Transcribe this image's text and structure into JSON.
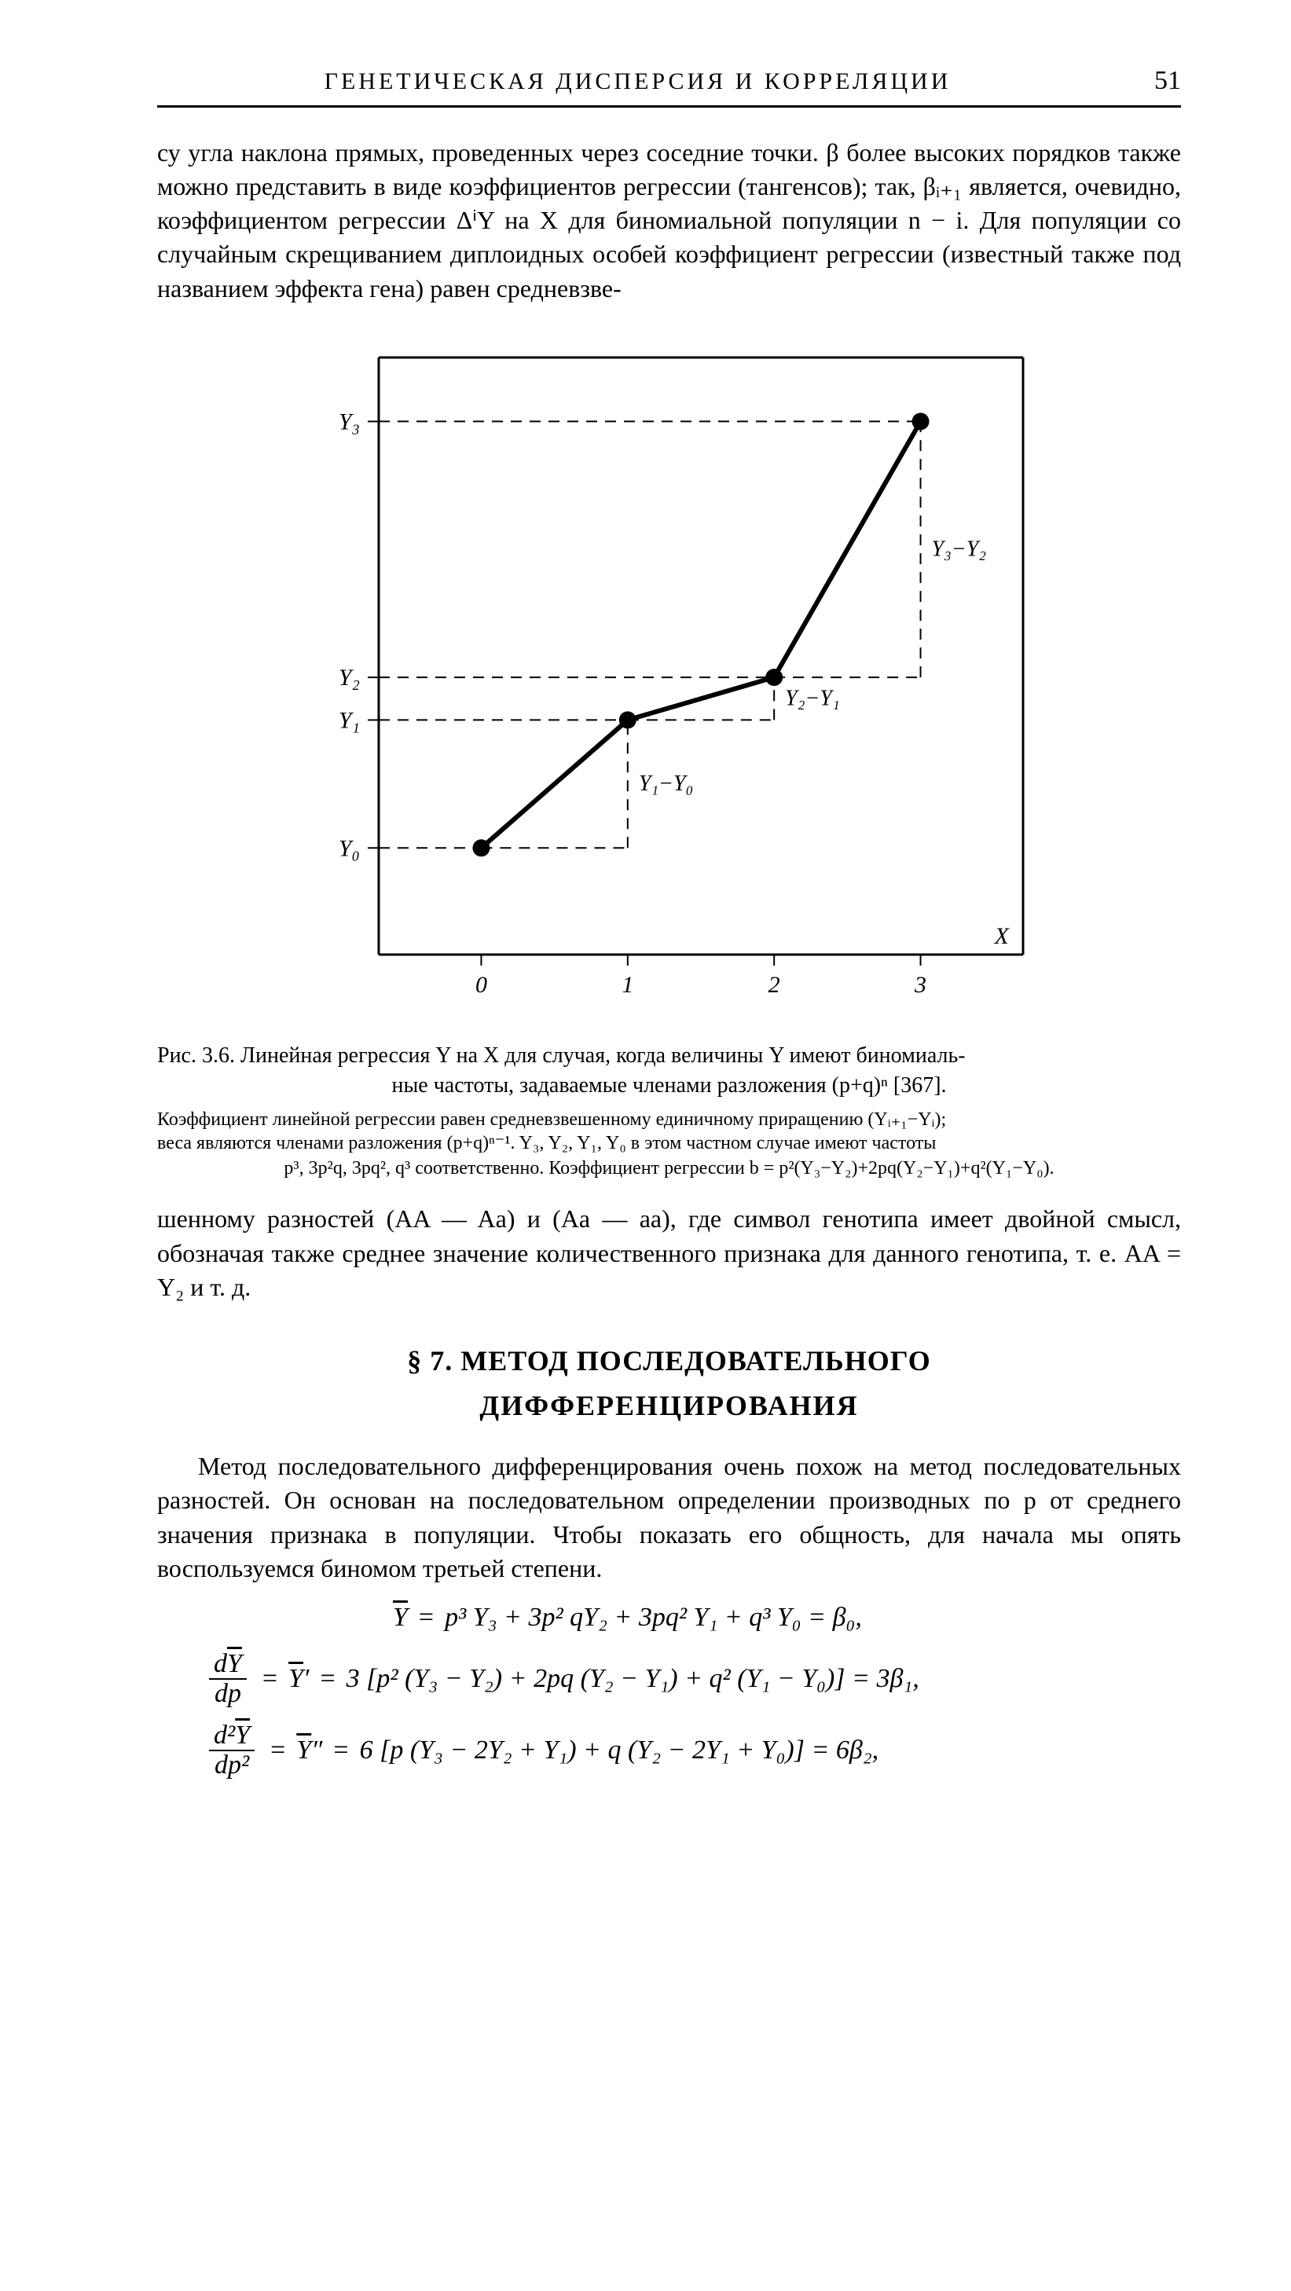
{
  "page": {
    "running_title": "ГЕНЕТИЧЕСКАЯ ДИСПЕРСИЯ И КОРРЕЛЯЦИИ",
    "number": "51"
  },
  "para1": "су угла наклона прямых, проведенных через соседние точки. β более высоких порядков также можно представить в виде коэффициентов регрессии (тангенсов); так, βᵢ₊₁ является, очевидно, коэффициентом регрессии ΔⁱY на X для биномиальной популяции n − i. Для популяции со случайным скрещиванием диплоидных особей коэффициент регрессии (известный также под названием эффекта гена) равен средневзве-",
  "chart": {
    "type": "line",
    "x_values": [
      -0.5,
      0,
      1,
      2,
      3,
      3.6
    ],
    "y_ticks": [
      {
        "value": 1.0,
        "label": "Y₀"
      },
      {
        "value": 2.2,
        "label": "Y₁"
      },
      {
        "value": 2.6,
        "label": "Y₂"
      },
      {
        "value": 5.0,
        "label": "Y₃"
      }
    ],
    "x_ticks": [
      {
        "value": 0,
        "label": "0"
      },
      {
        "value": 1,
        "label": "1"
      },
      {
        "value": 2,
        "label": "2"
      },
      {
        "value": 3,
        "label": "3"
      }
    ],
    "points": [
      {
        "x": 0,
        "y": 1.0
      },
      {
        "x": 1,
        "y": 2.2
      },
      {
        "x": 2,
        "y": 2.6
      },
      {
        "x": 3,
        "y": 5.0
      }
    ],
    "segment_labels": [
      {
        "text": "Y₁−Y₀",
        "attach": 1
      },
      {
        "text": "Y₂−Y₁",
        "attach": 2
      },
      {
        "text": "Y₃−Y₂",
        "attach": 3
      }
    ],
    "axis_label_x": "X",
    "xlim": [
      -0.7,
      3.7
    ],
    "ylim": [
      0,
      5.6
    ],
    "line_color": "#000000",
    "line_width": 6,
    "marker_radius": 11,
    "dash": "14,10",
    "axis_width": 3,
    "axis_color": "#000000",
    "background": "#ffffff",
    "font_size_tick": 30,
    "font_size_segment": 28
  },
  "fig_caption_l1": "Рис. 3.6. Линейная регрессия Y на X для случая, когда величины Y имеют биномиаль-",
  "fig_caption_l2": "ные частоты, задаваемые членами разложения (p+q)ⁿ [367].",
  "fig_sub_l1": "Коэффициент линейной регрессии равен средневзвешенному единичному приращению (Yᵢ₊₁−Yᵢ);",
  "fig_sub_l2": "веса являются членами разложения (p+q)ⁿ⁻¹. Y₃, Y₂, Y₁, Y₀ в этом частном случае имеют частоты",
  "fig_sub_l3": "p³, 3p²q, 3pq², q³ соответственно. Коэффициент регрессии b = p²(Y₃−Y₂)+2pq(Y₂−Y₁)+q²(Y₁−Y₀).",
  "para2": "шенному разностей (AA — Aa) и (Aa — aa), где символ генотипа имеет двойной смысл, обозначая также среднее значение количественного признака для данного генотипа, т. е. AA = Y₂ и т. д.",
  "section_number": "§ 7.",
  "section_line1": "МЕТОД ПОСЛЕДОВАТЕЛЬНОГО",
  "section_line2": "ДИФФЕРЕНЦИРОВАНИЯ",
  "para3": "Метод последовательного дифференцирования очень похож на метод последовательных разностей. Он основан на последовательном определении производных по p от среднего значения признака в популяции. Чтобы показать его общность, для начала мы опять воспользуемся биномом третьей степени.",
  "equations": {
    "eq1_lhs": "Y̅ =",
    "eq1_rhs": "p³ Y₃ + 3p² qY₂ + 3pq² Y₁ + q³ Y₀ = β₀,",
    "eq2_frac_num": "dY̅",
    "eq2_frac_den": "dp",
    "eq2_mid": "= Y̅′ =",
    "eq2_rhs": "3 [p² (Y₃ − Y₂) + 2pq (Y₂ − Y₁) + q² (Y₁ − Y₀)] = 3β₁,",
    "eq3_frac_num": "d²Y̅",
    "eq3_frac_den": "dp²",
    "eq3_mid": "= Y̅″ =",
    "eq3_rhs": "6 [p (Y₃ − 2Y₂ + Y₁) + q (Y₂ − 2Y₁ + Y₀)] = 6β₂,"
  }
}
